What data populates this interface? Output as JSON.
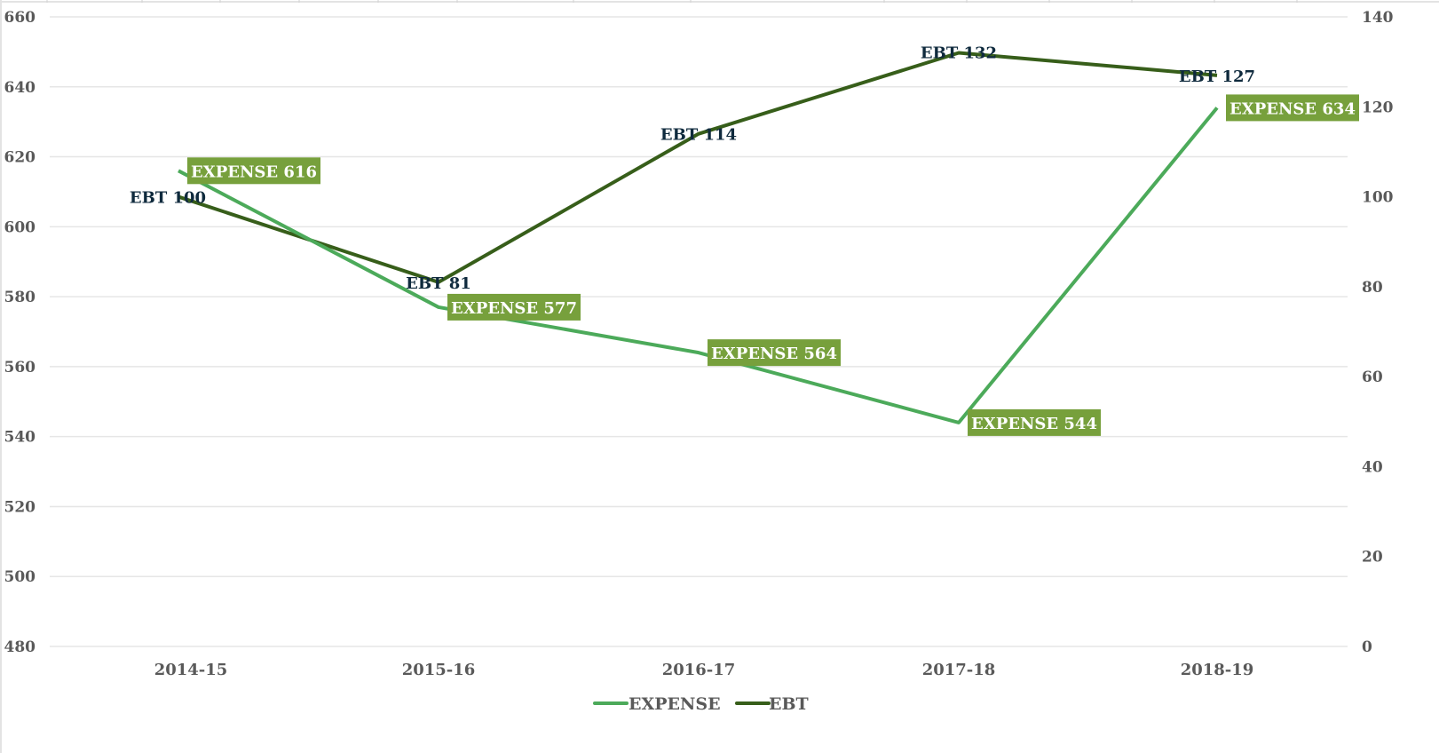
{
  "chart_data": {
    "type": "line",
    "title": "",
    "xlabel": "",
    "ylabel": "",
    "categories": [
      "2014-15",
      "2015-16",
      "2016-17",
      "2017-18",
      "2018-19"
    ],
    "series": [
      {
        "name": "EXPENSE",
        "axis": "left",
        "color": "#4caa5a",
        "values": [
          616,
          577,
          564,
          544,
          634
        ],
        "labels": [
          "EXPENSE 616",
          "EXPENSE 577",
          "EXPENSE 564",
          "EXPENSE 544",
          "EXPENSE 634"
        ],
        "label_bg": "#77a03c"
      },
      {
        "name": "EBT",
        "axis": "right",
        "color": "#375e1a",
        "values": [
          100,
          81,
          114,
          132,
          127
        ],
        "labels": [
          "EBT 100",
          "EBT 81",
          "EBT 114",
          "EBT 132",
          "EBT 127"
        ],
        "label_color": "#0f2a3d"
      }
    ],
    "ylim_left": [
      480,
      660
    ],
    "ylim_right": [
      0,
      140
    ],
    "left_ticks": [
      "660",
      "640",
      "620",
      "600",
      "580",
      "560",
      "540",
      "520",
      "500",
      "480"
    ],
    "right_ticks": [
      "140",
      "120",
      "100",
      "80",
      "60",
      "40",
      "20",
      "0"
    ],
    "grid": true,
    "legend_position": "bottom"
  },
  "legend": {
    "items": [
      {
        "label": "EXPENSE",
        "color": "#4caa5a"
      },
      {
        "label": "EBT",
        "color": "#375e1a"
      }
    ]
  }
}
